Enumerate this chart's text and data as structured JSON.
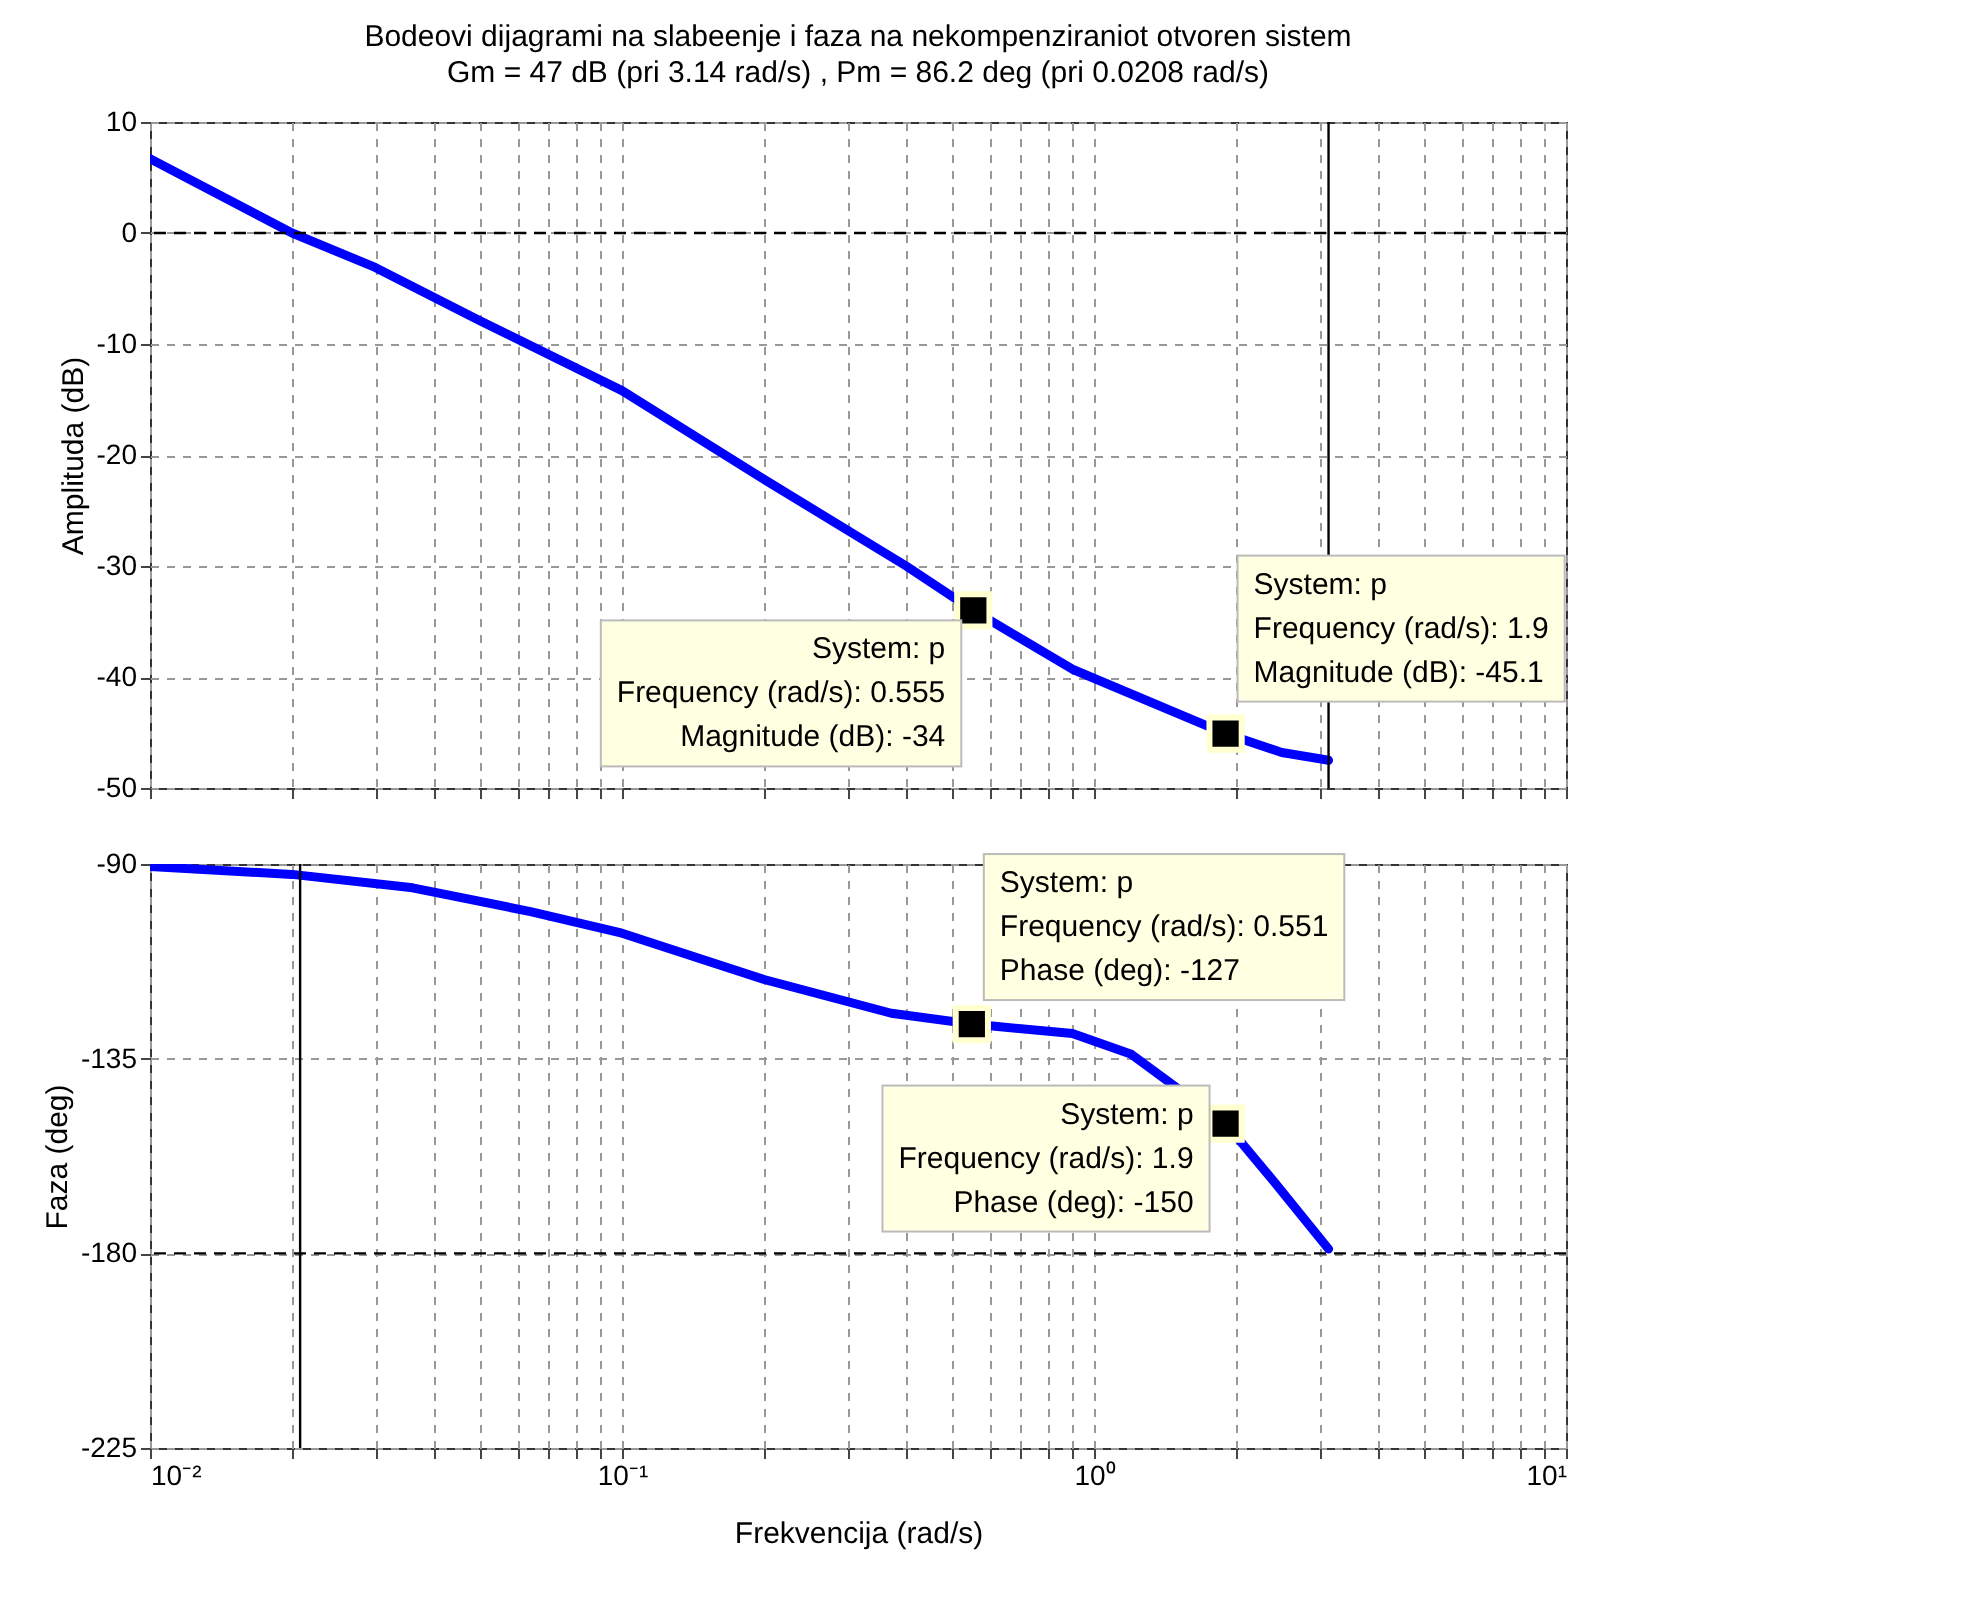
{
  "chart_data": [
    {
      "type": "line",
      "title": "Bodeovi dijagrami na slabeenje i faza na nekompenziraniot otvoren sistem",
      "subtitle": "Gm = 47 dB (pri 3.14 rad/s) ,  Pm = 86.2 deg (pri 0.0208 rad/s)",
      "ylabel": "Amplituda (dB)",
      "log": "x",
      "grid": true,
      "tick_labels": "y",
      "marker": "none",
      "line_style": "solid",
      "xlim": [
        0.01,
        10
      ],
      "ylim": [
        -50,
        10
      ],
      "yticks": [
        -50,
        -40,
        -30,
        -20,
        -10,
        0,
        10
      ],
      "xticks": [
        0.01,
        0.02,
        0.03,
        0.04,
        0.05,
        0.06,
        0.07,
        0.08,
        0.09,
        0.1,
        0.2,
        0.3,
        0.4,
        0.5,
        0.6,
        0.7,
        0.8,
        0.9,
        1,
        2,
        3,
        4,
        5,
        6,
        7,
        8,
        9,
        10
      ],
      "series": [
        {
          "color": "#0000ff",
          "x": [
            0.01,
            0.02,
            0.03,
            0.05,
            0.1,
            0.2,
            0.4,
            0.555,
            0.9,
            1.9,
            2.5,
            3.14
          ],
          "values": [
            6.7,
            0,
            -3.1,
            -7.9,
            -14.2,
            -22.2,
            -30,
            -34,
            -39.3,
            -45.1,
            -46.8,
            -47.5
          ]
        }
      ],
      "ref_lines": [
        {
          "axis": "y",
          "value": 0,
          "color": "#000000",
          "line_style": "dashed"
        },
        {
          "axis": "x",
          "value": 3.14,
          "color": "#000000",
          "line_style": "solid"
        }
      ],
      "annotations": [
        {
          "text": "System: p\nFrequency (rad/s): 0.555\nMagnitude (dB): -34",
          "x": 0.555,
          "y": -34
        },
        {
          "text": "System: p\nFrequency (rad/s): 1.9\nMagnitude (dB): -45.1",
          "x": 1.9,
          "y": -45.1
        }
      ]
    },
    {
      "type": "line",
      "xlabel": "Frekvencija  (rad/s)",
      "ylabel": "Faza (deg)",
      "log": "x",
      "grid": true,
      "marker": "none",
      "line_style": "solid",
      "xlim": [
        0.01,
        10
      ],
      "ylim": [
        -225,
        -90
      ],
      "yticks": [
        -225,
        -180,
        -135,
        -90
      ],
      "xticks": [
        {
          "value": 0.01,
          "label": "10⁻²"
        },
        {
          "value": 0.02,
          "label": null
        },
        {
          "value": 0.03,
          "label": null
        },
        {
          "value": 0.04,
          "label": null
        },
        {
          "value": 0.05,
          "label": null
        },
        {
          "value": 0.06,
          "label": null
        },
        {
          "value": 0.07,
          "label": null
        },
        {
          "value": 0.08,
          "label": null
        },
        {
          "value": 0.09,
          "label": null
        },
        {
          "value": 0.1,
          "label": "10⁻¹"
        },
        {
          "value": 0.2,
          "label": null
        },
        {
          "value": 0.3,
          "label": null
        },
        {
          "value": 0.4,
          "label": null
        },
        {
          "value": 0.5,
          "label": null
        },
        {
          "value": 0.6,
          "label": null
        },
        {
          "value": 0.7,
          "label": null
        },
        {
          "value": 0.8,
          "label": null
        },
        {
          "value": 0.9,
          "label": null
        },
        {
          "value": 1,
          "label": "10⁰"
        },
        {
          "value": 2,
          "label": null
        },
        {
          "value": 3,
          "label": null
        },
        {
          "value": 4,
          "label": null
        },
        {
          "value": 5,
          "label": null
        },
        {
          "value": 6,
          "label": null
        },
        {
          "value": 7,
          "label": null
        },
        {
          "value": 8,
          "label": null
        },
        {
          "value": 9,
          "label": null
        },
        {
          "value": 10,
          "label": "10¹"
        }
      ],
      "series": [
        {
          "color": "#0000ff",
          "x": [
            0.01,
            0.02,
            0.036,
            0.064,
            0.1,
            0.2,
            0.372,
            0.551,
            0.9,
            1.2,
            1.9,
            2.43,
            3.14
          ],
          "values": [
            -90.6,
            -92.4,
            -95.5,
            -101,
            -106,
            -116.7,
            -124.5,
            -127,
            -129.2,
            -134,
            -150,
            -164,
            -179
          ]
        }
      ],
      "ref_lines": [
        {
          "axis": "y",
          "value": -180,
          "color": "#000000",
          "line_style": "dashed"
        },
        {
          "axis": "x",
          "value": 0.0208,
          "color": "#000000",
          "line_style": "solid"
        }
      ],
      "annotations": [
        {
          "text": "System: p\nFrequency (rad/s): 0.551\nPhase (deg): -127",
          "x": 0.551,
          "y": -127
        },
        {
          "text": "System: p\nFrequency (rad/s): 1.9\nPhase (deg): -150",
          "x": 1.9,
          "y": -150
        }
      ]
    }
  ]
}
